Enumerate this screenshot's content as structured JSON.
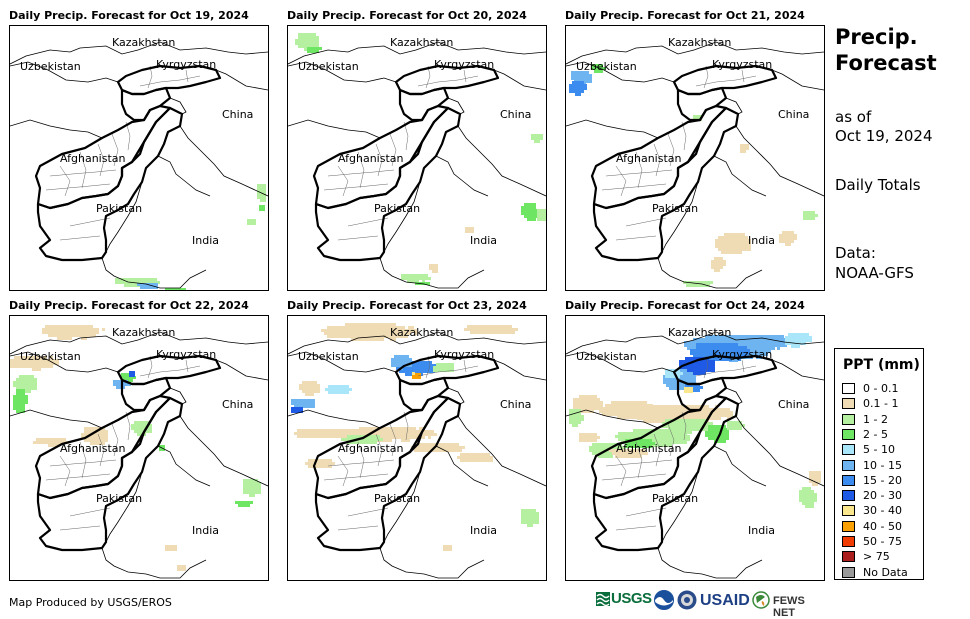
{
  "panels": [
    {
      "title": "Daily Precip. Forecast for Oct 19, 2024",
      "day": 0
    },
    {
      "title": "Daily Precip. Forecast for Oct 20, 2024",
      "day": 1
    },
    {
      "title": "Daily Precip. Forecast for Oct 21, 2024",
      "day": 2
    },
    {
      "title": "Daily Precip. Forecast for Oct 22, 2024",
      "day": 3
    },
    {
      "title": "Daily Precip. Forecast for Oct 23, 2024",
      "day": 4
    },
    {
      "title": "Daily Precip. Forecast for Oct 24, 2024",
      "day": 5
    }
  ],
  "map_labels": {
    "kazakhstan": "Kazakhstan",
    "uzbekistan": "Uzbekistan",
    "kyrgyzstan": "Kyrgyzstan",
    "china": "China",
    "afghanistan": "Afghanistan",
    "pakistan": "Pakistan",
    "india": "India"
  },
  "side": {
    "title_line1": "Precip.",
    "title_line2": "Forecast",
    "asof_line1": "as of",
    "asof_line2": "Oct 19, 2024",
    "totals": "Daily Totals",
    "data_line1": "Data:",
    "data_line2": "NOAA-GFS"
  },
  "legend": {
    "title": "PPT (mm)",
    "items": [
      {
        "label": "0 - 0.1",
        "color": "#ffffff"
      },
      {
        "label": "0.1 - 1",
        "color": "#f0dcb4"
      },
      {
        "label": "1 - 2",
        "color": "#b4f0a0"
      },
      {
        "label": "2 - 5",
        "color": "#6ee664"
      },
      {
        "label": "5 - 10",
        "color": "#aae6fa"
      },
      {
        "label": "10 - 15",
        "color": "#6eb4f0"
      },
      {
        "label": "15 - 20",
        "color": "#3c8cf0"
      },
      {
        "label": "20 - 30",
        "color": "#1e5ae6"
      },
      {
        "label": "30 - 40",
        "color": "#fae68c"
      },
      {
        "label": "40 - 50",
        "color": "#faa000"
      },
      {
        "label": "50 - 75",
        "color": "#f03c00"
      },
      {
        "label": "> 75",
        "color": "#aa1e1e"
      },
      {
        "label": "No Data",
        "color": "#999999"
      }
    ]
  },
  "credit": "Map Produced by USGS/EROS",
  "logos": {
    "usgs": "USGS",
    "usaid": "USAID",
    "fewsnet": "FEWS NET"
  }
}
